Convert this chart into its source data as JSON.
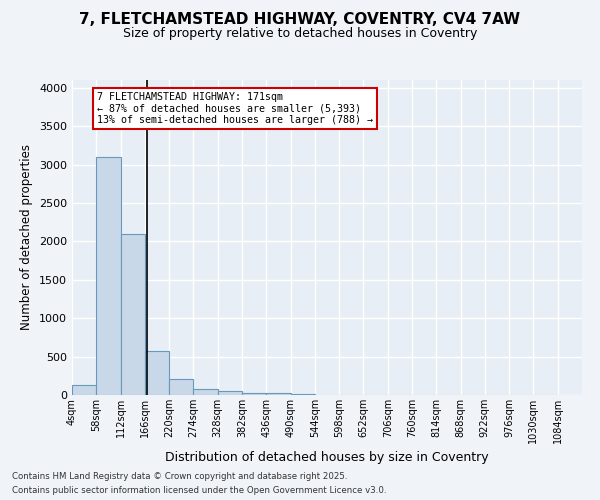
{
  "title_line1": "7, FLETCHAMSTEAD HIGHWAY, COVENTRY, CV4 7AW",
  "title_line2": "Size of property relative to detached houses in Coventry",
  "xlabel": "Distribution of detached houses by size in Coventry",
  "ylabel": "Number of detached properties",
  "bin_labels": [
    "4sqm",
    "58sqm",
    "112sqm",
    "166sqm",
    "220sqm",
    "274sqm",
    "328sqm",
    "382sqm",
    "436sqm",
    "490sqm",
    "544sqm",
    "598sqm",
    "652sqm",
    "706sqm",
    "760sqm",
    "814sqm",
    "868sqm",
    "922sqm",
    "976sqm",
    "1030sqm",
    "1084sqm"
  ],
  "bin_edges": [
    4,
    58,
    112,
    166,
    220,
    274,
    328,
    382,
    436,
    490,
    544,
    598,
    652,
    706,
    760,
    814,
    868,
    922,
    976,
    1030,
    1084
  ],
  "bar_heights": [
    130,
    3100,
    2100,
    570,
    210,
    75,
    50,
    30,
    20,
    10,
    5,
    3,
    2,
    2,
    1,
    1,
    0,
    0,
    0,
    0
  ],
  "bar_color": "#c8d8e8",
  "bar_edgecolor": "#6699bb",
  "property_size": 171,
  "annotation_line1": "7 FLETCHAMSTEAD HIGHWAY: 171sqm",
  "annotation_line2": "← 87% of detached houses are smaller (5,393)",
  "annotation_line3": "13% of semi-detached houses are larger (788) →",
  "vline_color": "#000000",
  "annotation_box_edgecolor": "#cc0000",
  "annotation_box_facecolor": "#ffffff",
  "ylim": [
    0,
    4100
  ],
  "yticks": [
    0,
    500,
    1000,
    1500,
    2000,
    2500,
    3000,
    3500,
    4000
  ],
  "background_color": "#e8eef5",
  "grid_color": "#ffffff",
  "fig_background": "#f0f4f8",
  "footer_line1": "Contains HM Land Registry data © Crown copyright and database right 2025.",
  "footer_line2": "Contains public sector information licensed under the Open Government Licence v3.0."
}
